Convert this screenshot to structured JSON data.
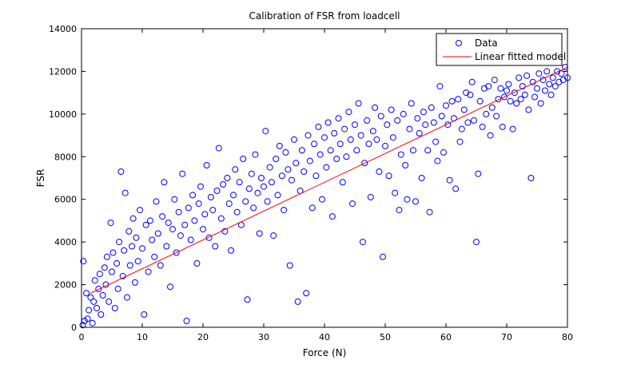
{
  "chart_data": {
    "type": "scatter",
    "title": "Calibration of FSR from loadcell",
    "xlabel": "Force (N)",
    "ylabel": "FSR",
    "xlim": [
      0,
      80
    ],
    "ylim": [
      0,
      14000
    ],
    "xticks": [
      0,
      10,
      20,
      30,
      40,
      50,
      60,
      70,
      80
    ],
    "yticks": [
      0,
      2000,
      4000,
      6000,
      8000,
      10000,
      12000,
      14000
    ],
    "grid": false,
    "legend_position": "top-right",
    "colors": {
      "data": "#0000ff",
      "fit": "#ff0000"
    },
    "series": [
      {
        "name": "Data",
        "type": "scatter",
        "marker": "circle-open",
        "points": [
          [
            0.2,
            100
          ],
          [
            0.5,
            300
          ],
          [
            0.8,
            1600
          ],
          [
            1.0,
            400
          ],
          [
            0.3,
            3100
          ],
          [
            1.2,
            800
          ],
          [
            1.5,
            1400
          ],
          [
            1.8,
            200
          ],
          [
            2.0,
            1200
          ],
          [
            2.2,
            2200
          ],
          [
            2.5,
            900
          ],
          [
            2.8,
            1800
          ],
          [
            3.0,
            2500
          ],
          [
            3.2,
            600
          ],
          [
            3.5,
            1500
          ],
          [
            3.8,
            2800
          ],
          [
            4.0,
            2000
          ],
          [
            4.2,
            3300
          ],
          [
            4.5,
            1200
          ],
          [
            4.8,
            4900
          ],
          [
            5.0,
            2600
          ],
          [
            5.2,
            3500
          ],
          [
            5.5,
            900
          ],
          [
            5.8,
            3000
          ],
          [
            6.0,
            1800
          ],
          [
            6.2,
            4000
          ],
          [
            6.5,
            7300
          ],
          [
            6.8,
            2400
          ],
          [
            7.0,
            3600
          ],
          [
            7.2,
            6300
          ],
          [
            7.5,
            1400
          ],
          [
            7.8,
            4500
          ],
          [
            8.0,
            2900
          ],
          [
            8.3,
            3800
          ],
          [
            8.5,
            5100
          ],
          [
            8.8,
            2100
          ],
          [
            9.0,
            4200
          ],
          [
            9.3,
            3100
          ],
          [
            9.6,
            5500
          ],
          [
            10.0,
            3700
          ],
          [
            10.3,
            600
          ],
          [
            10.6,
            4800
          ],
          [
            11.0,
            2600
          ],
          [
            11.3,
            5000
          ],
          [
            11.6,
            4100
          ],
          [
            12.0,
            3300
          ],
          [
            12.3,
            5900
          ],
          [
            12.6,
            4400
          ],
          [
            13.0,
            2900
          ],
          [
            13.3,
            5200
          ],
          [
            13.6,
            6800
          ],
          [
            14.0,
            3800
          ],
          [
            14.3,
            4900
          ],
          [
            14.6,
            1900
          ],
          [
            15.0,
            4600
          ],
          [
            15.3,
            6000
          ],
          [
            15.6,
            3500
          ],
          [
            16.0,
            5400
          ],
          [
            16.3,
            4300
          ],
          [
            16.6,
            7200
          ],
          [
            17.0,
            4800
          ],
          [
            17.3,
            300
          ],
          [
            17.6,
            5600
          ],
          [
            18.0,
            4100
          ],
          [
            18.3,
            6200
          ],
          [
            18.6,
            5000
          ],
          [
            19.0,
            3000
          ],
          [
            19.3,
            5800
          ],
          [
            19.6,
            6600
          ],
          [
            20.0,
            4600
          ],
          [
            20.3,
            5300
          ],
          [
            20.6,
            7600
          ],
          [
            21.0,
            4200
          ],
          [
            21.3,
            6100
          ],
          [
            21.6,
            5500
          ],
          [
            22.0,
            3800
          ],
          [
            22.3,
            6400
          ],
          [
            22.6,
            8400
          ],
          [
            23.0,
            5100
          ],
          [
            23.3,
            6700
          ],
          [
            23.6,
            4500
          ],
          [
            24.0,
            7000
          ],
          [
            24.3,
            5800
          ],
          [
            24.6,
            3600
          ],
          [
            25.0,
            6200
          ],
          [
            25.3,
            7400
          ],
          [
            25.6,
            5400
          ],
          [
            26.0,
            6800
          ],
          [
            26.3,
            4800
          ],
          [
            26.6,
            7900
          ],
          [
            27.0,
            5900
          ],
          [
            27.3,
            1300
          ],
          [
            27.6,
            6500
          ],
          [
            28.0,
            7200
          ],
          [
            28.3,
            5600
          ],
          [
            28.6,
            8100
          ],
          [
            29.0,
            6300
          ],
          [
            29.3,
            4400
          ],
          [
            29.6,
            7000
          ],
          [
            30.0,
            6600
          ],
          [
            30.3,
            9200
          ],
          [
            30.6,
            5900
          ],
          [
            31.0,
            7500
          ],
          [
            31.3,
            6800
          ],
          [
            31.6,
            4300
          ],
          [
            32.0,
            7900
          ],
          [
            32.3,
            6200
          ],
          [
            32.6,
            8500
          ],
          [
            33.0,
            7100
          ],
          [
            33.3,
            5500
          ],
          [
            33.6,
            8200
          ],
          [
            34.0,
            7400
          ],
          [
            34.3,
            2900
          ],
          [
            34.6,
            6900
          ],
          [
            35.0,
            8800
          ],
          [
            35.3,
            7700
          ],
          [
            35.6,
            1200
          ],
          [
            36.0,
            6400
          ],
          [
            36.3,
            8300
          ],
          [
            36.6,
            7300
          ],
          [
            37.0,
            1600
          ],
          [
            37.3,
            9000
          ],
          [
            37.6,
            7800
          ],
          [
            38.0,
            5600
          ],
          [
            38.3,
            8600
          ],
          [
            38.6,
            7100
          ],
          [
            39.0,
            9400
          ],
          [
            39.3,
            8100
          ],
          [
            39.6,
            6000
          ],
          [
            40.0,
            8900
          ],
          [
            40.3,
            7500
          ],
          [
            40.6,
            9600
          ],
          [
            41.0,
            8300
          ],
          [
            41.3,
            5200
          ],
          [
            41.6,
            9100
          ],
          [
            42.0,
            7900
          ],
          [
            42.3,
            9800
          ],
          [
            42.6,
            8600
          ],
          [
            43.0,
            6800
          ],
          [
            43.3,
            9300
          ],
          [
            43.6,
            8000
          ],
          [
            44.0,
            10100
          ],
          [
            44.3,
            8800
          ],
          [
            44.6,
            5800
          ],
          [
            45.0,
            9500
          ],
          [
            45.3,
            8300
          ],
          [
            45.6,
            10500
          ],
          [
            46.0,
            9000
          ],
          [
            46.3,
            4000
          ],
          [
            46.6,
            7700
          ],
          [
            47.0,
            9700
          ],
          [
            47.3,
            8600
          ],
          [
            47.6,
            6100
          ],
          [
            48.0,
            9200
          ],
          [
            48.3,
            10300
          ],
          [
            48.6,
            8800
          ],
          [
            49.0,
            7300
          ],
          [
            49.3,
            9900
          ],
          [
            49.6,
            3300
          ],
          [
            50.0,
            8500
          ],
          [
            50.3,
            9500
          ],
          [
            50.6,
            7100
          ],
          [
            51.0,
            10200
          ],
          [
            51.3,
            8900
          ],
          [
            51.6,
            6300
          ],
          [
            52.0,
            9700
          ],
          [
            52.3,
            5500
          ],
          [
            52.6,
            8100
          ],
          [
            53.0,
            10000
          ],
          [
            53.3,
            7600
          ],
          [
            53.6,
            6000
          ],
          [
            54.0,
            9300
          ],
          [
            54.3,
            10500
          ],
          [
            54.6,
            8300
          ],
          [
            55.0,
            5900
          ],
          [
            55.3,
            9800
          ],
          [
            55.6,
            9100
          ],
          [
            56.0,
            7000
          ],
          [
            56.3,
            10100
          ],
          [
            56.6,
            9500
          ],
          [
            57.0,
            8300
          ],
          [
            57.3,
            5400
          ],
          [
            57.6,
            10300
          ],
          [
            58.0,
            9600
          ],
          [
            58.3,
            8700
          ],
          [
            58.6,
            7800
          ],
          [
            59.0,
            11300
          ],
          [
            59.3,
            9900
          ],
          [
            59.6,
            8200
          ],
          [
            60.0,
            10400
          ],
          [
            60.3,
            9500
          ],
          [
            60.6,
            6900
          ],
          [
            61.0,
            10600
          ],
          [
            61.3,
            9800
          ],
          [
            61.6,
            6500
          ],
          [
            62.0,
            10700
          ],
          [
            62.3,
            8700
          ],
          [
            62.6,
            9300
          ],
          [
            63.0,
            10200
          ],
          [
            63.3,
            11000
          ],
          [
            63.6,
            9600
          ],
          [
            64.0,
            10900
          ],
          [
            64.3,
            11500
          ],
          [
            64.6,
            9700
          ],
          [
            65.0,
            4000
          ],
          [
            65.3,
            7200
          ],
          [
            65.6,
            10600
          ],
          [
            66.0,
            9400
          ],
          [
            66.3,
            11200
          ],
          [
            66.6,
            10000
          ],
          [
            67.0,
            11300
          ],
          [
            67.3,
            9000
          ],
          [
            67.6,
            10300
          ],
          [
            68.0,
            11600
          ],
          [
            68.3,
            9900
          ],
          [
            68.6,
            10700
          ],
          [
            69.0,
            11200
          ],
          [
            69.3,
            9400
          ],
          [
            69.6,
            10800
          ],
          [
            70.0,
            11100
          ],
          [
            70.3,
            11400
          ],
          [
            70.6,
            10600
          ],
          [
            71.0,
            9300
          ],
          [
            71.3,
            11000
          ],
          [
            71.6,
            10500
          ],
          [
            72.0,
            11700
          ],
          [
            72.3,
            10700
          ],
          [
            72.6,
            11300
          ],
          [
            73.0,
            10900
          ],
          [
            73.3,
            11800
          ],
          [
            73.6,
            10200
          ],
          [
            74.0,
            7000
          ],
          [
            74.3,
            11500
          ],
          [
            74.6,
            10800
          ],
          [
            75.0,
            11200
          ],
          [
            75.3,
            11900
          ],
          [
            75.6,
            10500
          ],
          [
            76.0,
            11600
          ],
          [
            76.3,
            11100
          ],
          [
            76.6,
            12000
          ],
          [
            77.0,
            11400
          ],
          [
            77.3,
            10900
          ],
          [
            77.6,
            11700
          ],
          [
            78.0,
            11300
          ],
          [
            78.3,
            12000
          ],
          [
            78.6,
            11500
          ],
          [
            79.0,
            11900
          ],
          [
            79.3,
            11600
          ],
          [
            79.6,
            12200
          ],
          [
            80.0,
            11700
          ]
        ]
      },
      {
        "name": "Linear fitted model",
        "type": "line",
        "points": [
          [
            1.5,
            1600
          ],
          [
            80,
            12200
          ]
        ]
      }
    ]
  }
}
